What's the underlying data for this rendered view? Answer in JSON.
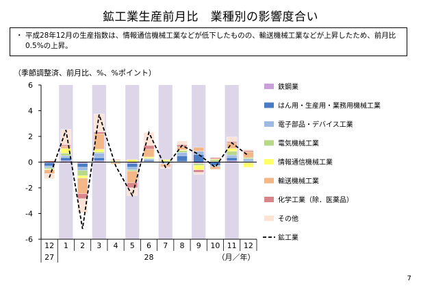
{
  "title": "鉱工業生産前月比　業種別の影響度合い",
  "note": {
    "bullet": "・",
    "text": "平成28年12月の生産指数は、情報通信機械工業などが低下したものの、輸送機械工業などが上昇したため、前月比0.5%の上昇。"
  },
  "unit_label": "（季節調整済、前月比、%、%ポイント）",
  "x_unit_label": "（月／年）",
  "page_number": "7",
  "colors": {
    "shade": "#dcd6e8",
    "axis": "#000000"
  },
  "chart_data": {
    "type": "bar",
    "stacked": true,
    "ylim": [
      -6,
      6
    ],
    "yticks": [
      -6,
      -4,
      -2,
      0,
      2,
      4,
      6
    ],
    "grid": false,
    "legend_position": "right",
    "categories": [
      "12",
      "1",
      "2",
      "3",
      "4",
      "5",
      "6",
      "7",
      "8",
      "9",
      "10",
      "11",
      "12"
    ],
    "year_labels": [
      {
        "index": 0,
        "label": "27"
      },
      {
        "index": 6,
        "label": "28"
      }
    ],
    "shaded_indices": [
      1,
      3,
      5,
      7,
      9,
      11
    ],
    "series": [
      {
        "name": "鉄鋼業",
        "color": "#c9a0dc",
        "values": [
          -0.05,
          0.1,
          -0.1,
          0.1,
          0.0,
          -0.1,
          0.05,
          -0.05,
          0.05,
          -0.1,
          0.05,
          0.1,
          -0.05
        ]
      },
      {
        "name": "はん用・生産用・業務用機械工業",
        "color": "#4a7cc4",
        "values": [
          -0.25,
          0.25,
          -0.3,
          0.25,
          -0.05,
          -0.3,
          0.1,
          -0.05,
          0.45,
          0.6,
          -0.25,
          0.25,
          0.05
        ]
      },
      {
        "name": "電子部品・デバイス工業",
        "color": "#9dbbe0",
        "values": [
          -0.15,
          0.15,
          -0.25,
          0.35,
          0.05,
          -0.2,
          0.1,
          -0.05,
          0.25,
          0.25,
          -0.1,
          0.2,
          0.2
        ]
      },
      {
        "name": "電気機械工業",
        "color": "#b8d88a",
        "values": [
          -0.1,
          0.2,
          -0.4,
          0.1,
          0.05,
          -0.1,
          0.05,
          0.1,
          0.15,
          -0.15,
          0.15,
          0.3,
          0.1
        ]
      },
      {
        "name": "情報通信機械工業",
        "color": "#ffff66",
        "values": [
          -0.05,
          0.35,
          -0.2,
          0.2,
          0.05,
          0.2,
          0.1,
          0.1,
          0.05,
          -0.35,
          0.05,
          0.2,
          -0.35
        ]
      },
      {
        "name": "輸送機械工業",
        "color": "#f3b787",
        "values": [
          -0.3,
          0.2,
          -1.2,
          1.2,
          -0.1,
          -0.9,
          0.6,
          -0.2,
          0.25,
          0.3,
          -0.2,
          0.45,
          0.45
        ]
      },
      {
        "name": "化学工業（除．医薬品）",
        "color": "#d9868a",
        "values": [
          0.1,
          0.1,
          -0.4,
          0.15,
          0.05,
          -0.4,
          0.3,
          -0.05,
          0.15,
          -0.2,
          0.1,
          0.1,
          0.1
        ]
      },
      {
        "name": "その他",
        "color": "#fbe4d6",
        "values": [
          -0.4,
          1.2,
          -1.1,
          1.4,
          0.0,
          -0.6,
          1.0,
          -0.1,
          0.3,
          -0.15,
          -0.05,
          0.35,
          0.1
        ]
      }
    ],
    "line": {
      "name": "鉱工業",
      "values": [
        -1.2,
        2.5,
        -5.2,
        3.7,
        -0.3,
        -2.6,
        2.3,
        -0.4,
        1.3,
        0.6,
        -0.4,
        1.5,
        0.5
      ]
    }
  }
}
